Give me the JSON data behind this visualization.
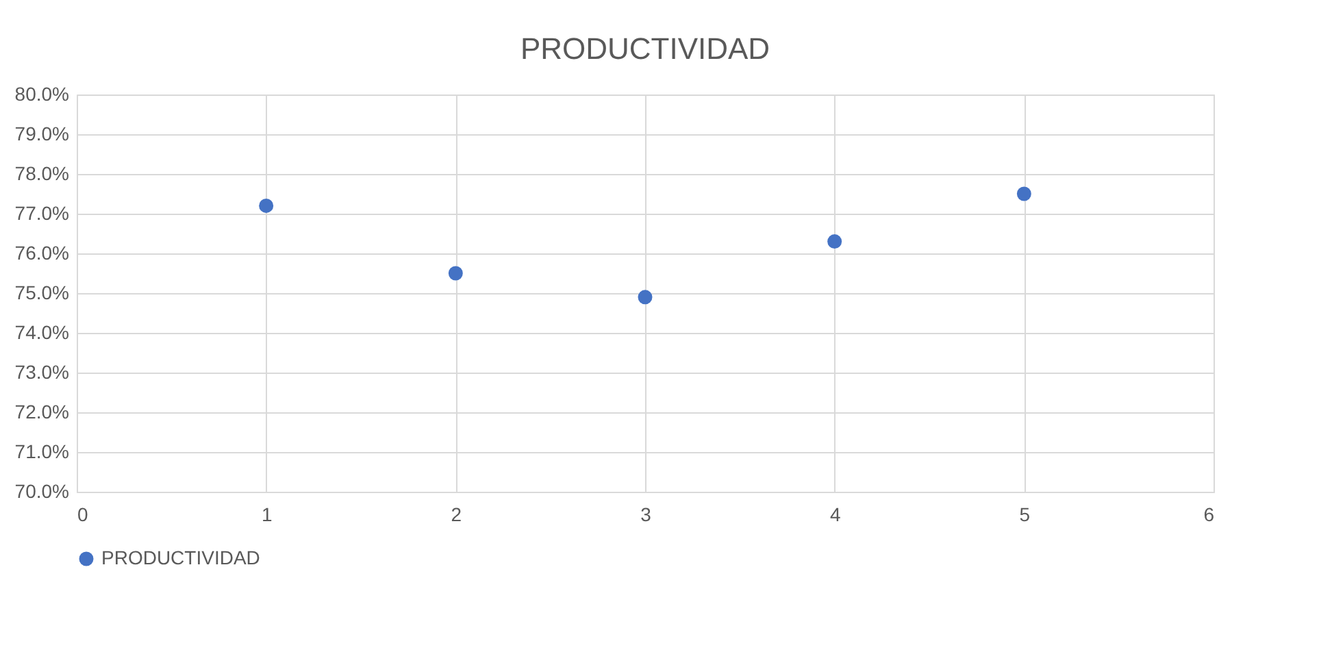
{
  "chart_data": {
    "type": "scatter",
    "title": "PRODUCTIVIDAD",
    "x": [
      1,
      2,
      3,
      4,
      5
    ],
    "series": [
      {
        "name": "PRODUCTIVIDAD",
        "color": "#4472c4",
        "values": [
          77.2,
          75.5,
          74.9,
          76.3,
          77.5
        ]
      }
    ],
    "xlim": [
      0,
      6
    ],
    "xticks": [
      0,
      1,
      2,
      3,
      4,
      5,
      6
    ],
    "ylim": [
      70,
      80
    ],
    "yticks": [
      {
        "value": 70,
        "label": "70.0%"
      },
      {
        "value": 71,
        "label": "71.0%"
      },
      {
        "value": 72,
        "label": "72.0%"
      },
      {
        "value": 73,
        "label": "73.0%"
      },
      {
        "value": 74,
        "label": "74.0%"
      },
      {
        "value": 75,
        "label": "75.0%"
      },
      {
        "value": 76,
        "label": "76.0%"
      },
      {
        "value": 77,
        "label": "77.0%"
      },
      {
        "value": 78,
        "label": "78.0%"
      },
      {
        "value": 79,
        "label": "79.0%"
      },
      {
        "value": 80,
        "label": "80.0%"
      }
    ],
    "grid": true,
    "legend": "bottom",
    "marker": "circle"
  }
}
